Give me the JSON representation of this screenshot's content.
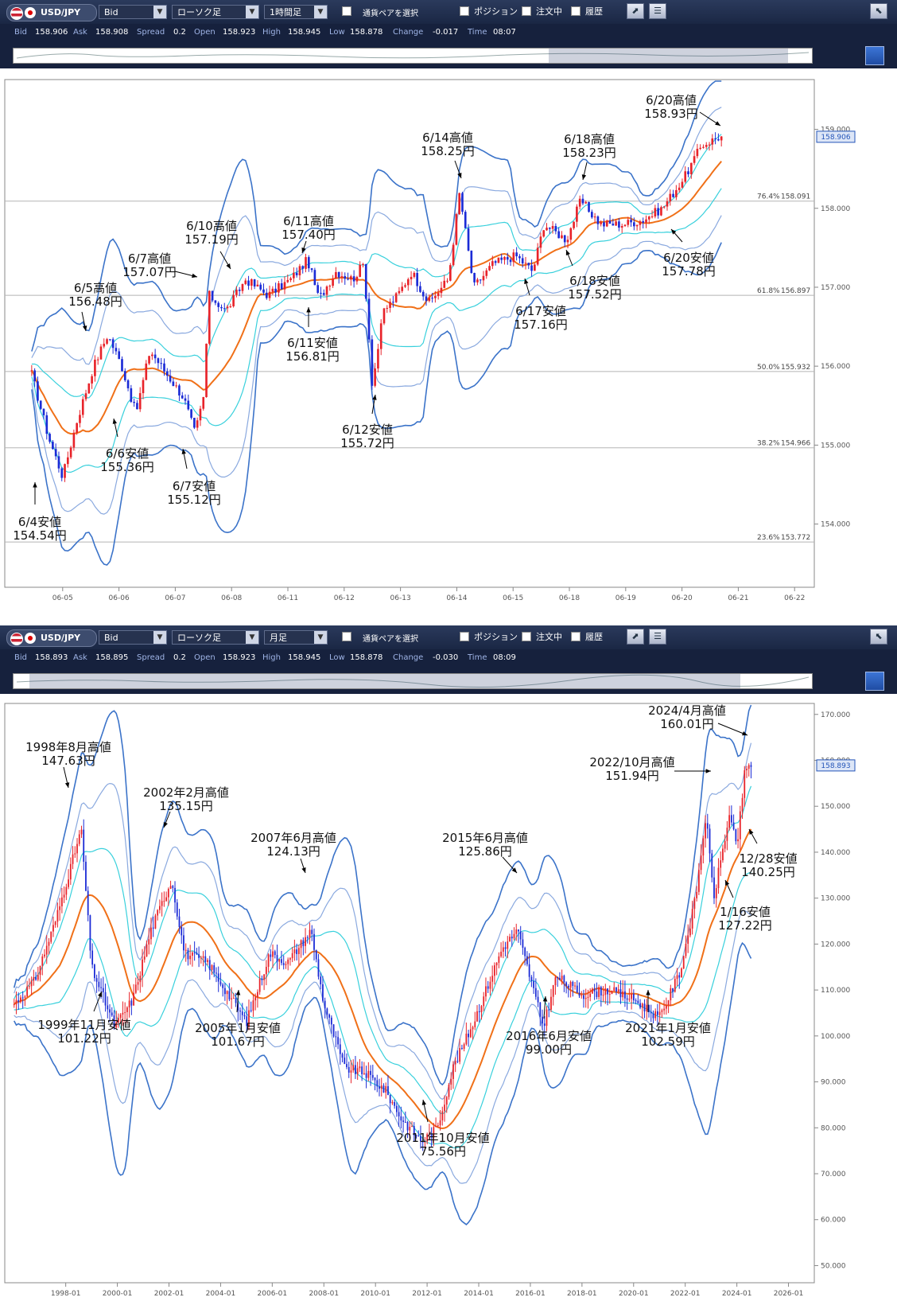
{
  "panels": [
    {
      "toolbar": {
        "pair": "USD/JPY",
        "price_type": "Bid",
        "chart_type": "ローソク足",
        "timeframe": "1時間足",
        "pair_select_label": "通貨ペアを選択",
        "position_label": "ポジション",
        "order_label": "注文中",
        "history_label": "履歴"
      },
      "info": {
        "bid_label": "Bid",
        "bid": "158.906",
        "ask_label": "Ask",
        "ask": "158.908",
        "spread_label": "Spread",
        "spread": "0.2",
        "open_label": "Open",
        "open": "158.923",
        "high_label": "High",
        "high": "158.945",
        "low_label": "Low",
        "low": "158.878",
        "change_label": "Change",
        "change": "-0.017",
        "time_label": "Time",
        "time": "08:07"
      },
      "navigator": {
        "window_start": 0.67,
        "window_end": 0.97
      }
    },
    {
      "toolbar": {
        "pair": "USD/JPY",
        "price_type": "Bid",
        "chart_type": "ローソク足",
        "timeframe": "月足",
        "pair_select_label": "通貨ペアを選択",
        "position_label": "ポジション",
        "order_label": "注文中",
        "history_label": "履歴"
      },
      "info": {
        "bid_label": "Bid",
        "bid": "158.893",
        "ask_label": "Ask",
        "ask": "158.895",
        "spread_label": "Spread",
        "spread": "0.2",
        "open_label": "Open",
        "open": "158.923",
        "high_label": "High",
        "high": "158.945",
        "low_label": "Low",
        "low": "158.878",
        "change_label": "Change",
        "change": "-0.030",
        "time_label": "Time",
        "time": "08:09"
      },
      "navigator": {
        "window_start": 0.02,
        "window_end": 0.91
      }
    }
  ],
  "colors": {
    "up_candle": "#e8232a",
    "down_candle": "#1b2bd6",
    "outer_band": "#3b73c9",
    "mid_band": "#8aa9df",
    "inner_band": "#38d0dc",
    "moving_average": "#f07018",
    "fib_line": "#b5b5b5",
    "price_tag": "#2455b8"
  },
  "chart_data": [
    {
      "type": "candlestick",
      "title": "",
      "timeframe": "1時間足",
      "x_tick_labels": [
        "06-05",
        "06-06",
        "06-07",
        "06-08",
        "06-11",
        "06-12",
        "06-13",
        "06-14",
        "06-15",
        "06-18",
        "06-19",
        "06-20",
        "06-21",
        "06-22"
      ],
      "y_tick_labels": [
        "159.000",
        "158.000",
        "157.000",
        "156.000",
        "155.000",
        "154.000"
      ],
      "ylim": [
        153.3,
        159.55
      ],
      "current_price": "158.906",
      "fib_levels": [
        {
          "label": "76.4%",
          "value": "158.091"
        },
        {
          "label": "61.8%",
          "value": "156.897"
        },
        {
          "label": "50.0%",
          "value": "155.932"
        },
        {
          "label": "38.2%",
          "value": "154.966"
        },
        {
          "label": "23.6%",
          "value": "153.772"
        }
      ],
      "close_path": [
        {
          "x": 0.0,
          "y": 155.9
        },
        {
          "x": 0.3,
          "y": 155.1
        },
        {
          "x": 0.55,
          "y": 154.6
        },
        {
          "x": 0.8,
          "y": 155.3
        },
        {
          "x": 1.1,
          "y": 156.0
        },
        {
          "x": 1.35,
          "y": 156.4
        },
        {
          "x": 1.6,
          "y": 156.0
        },
        {
          "x": 1.85,
          "y": 155.4
        },
        {
          "x": 2.1,
          "y": 156.2
        },
        {
          "x": 2.4,
          "y": 155.9
        },
        {
          "x": 2.7,
          "y": 155.6
        },
        {
          "x": 2.9,
          "y": 155.15
        },
        {
          "x": 3.05,
          "y": 155.6
        },
        {
          "x": 3.15,
          "y": 156.9
        },
        {
          "x": 3.45,
          "y": 156.7
        },
        {
          "x": 3.8,
          "y": 157.1
        },
        {
          "x": 4.2,
          "y": 156.9
        },
        {
          "x": 4.6,
          "y": 157.1
        },
        {
          "x": 4.9,
          "y": 157.35
        },
        {
          "x": 5.1,
          "y": 156.85
        },
        {
          "x": 5.4,
          "y": 157.2
        },
        {
          "x": 5.7,
          "y": 157.1
        },
        {
          "x": 5.9,
          "y": 157.3
        },
        {
          "x": 6.05,
          "y": 155.75
        },
        {
          "x": 6.25,
          "y": 156.7
        },
        {
          "x": 6.5,
          "y": 156.9
        },
        {
          "x": 6.75,
          "y": 157.2
        },
        {
          "x": 7.05,
          "y": 156.8
        },
        {
          "x": 7.4,
          "y": 157.1
        },
        {
          "x": 7.6,
          "y": 158.2
        },
        {
          "x": 7.85,
          "y": 157.0
        },
        {
          "x": 8.2,
          "y": 157.3
        },
        {
          "x": 8.6,
          "y": 157.4
        },
        {
          "x": 8.9,
          "y": 157.2
        },
        {
          "x": 9.1,
          "y": 157.8
        },
        {
          "x": 9.5,
          "y": 157.6
        },
        {
          "x": 9.75,
          "y": 158.1
        },
        {
          "x": 10.1,
          "y": 157.8
        },
        {
          "x": 10.5,
          "y": 157.8
        },
        {
          "x": 10.85,
          "y": 157.85
        },
        {
          "x": 11.2,
          "y": 158.0
        },
        {
          "x": 11.6,
          "y": 158.4
        },
        {
          "x": 11.9,
          "y": 158.8
        },
        {
          "x": 12.2,
          "y": 158.9
        }
      ],
      "annotations": [
        {
          "label": "6/4安値",
          "price": "154.54円"
        },
        {
          "label": "6/5高値",
          "price": "156.48円"
        },
        {
          "label": "6/6安値",
          "price": "155.36円"
        },
        {
          "label": "6/7高値",
          "price": "157.07円"
        },
        {
          "label": "6/7安値",
          "price": "155.12円"
        },
        {
          "label": "6/10高値",
          "price": "157.19円"
        },
        {
          "label": "6/11高値",
          "price": "157.40円"
        },
        {
          "label": "6/11安値",
          "price": "156.81円"
        },
        {
          "label": "6/12安値",
          "price": "155.72円"
        },
        {
          "label": "6/14高値",
          "price": "158.25円"
        },
        {
          "label": "6/17安値",
          "price": "157.16円"
        },
        {
          "label": "6/18高値",
          "price": "158.23円"
        },
        {
          "label": "6/18安値",
          "price": "157.52円"
        },
        {
          "label": "6/20高値",
          "price": "158.93円"
        },
        {
          "label": "6/20安値",
          "price": "157.78円"
        }
      ]
    },
    {
      "type": "candlestick",
      "title": "",
      "timeframe": "月足",
      "x_tick_labels": [
        "1998-01",
        "2000-01",
        "2002-01",
        "2004-01",
        "2006-01",
        "2008-01",
        "2010-01",
        "2012-01",
        "2014-01",
        "2016-01",
        "2018-01",
        "2020-01",
        "2022-01",
        "2024-01",
        "2026-01"
      ],
      "y_tick_labels": [
        "170.000",
        "160.000",
        "150.000",
        "140.000",
        "130.000",
        "120.000",
        "110.000",
        "100.000",
        "90.000",
        "80.000",
        "70.000",
        "60.000",
        "50.000"
      ],
      "ylim": [
        48,
        171
      ],
      "current_price": "158.893",
      "close_path": [
        {
          "x": 1996.0,
          "y": 107
        },
        {
          "x": 1996.8,
          "y": 112
        },
        {
          "x": 1997.6,
          "y": 125
        },
        {
          "x": 1998.6,
          "y": 145
        },
        {
          "x": 1999.0,
          "y": 115
        },
        {
          "x": 1999.9,
          "y": 102
        },
        {
          "x": 2000.6,
          "y": 108
        },
        {
          "x": 2001.3,
          "y": 123
        },
        {
          "x": 2002.1,
          "y": 134
        },
        {
          "x": 2002.6,
          "y": 118
        },
        {
          "x": 2003.5,
          "y": 116
        },
        {
          "x": 2005.0,
          "y": 103
        },
        {
          "x": 2005.9,
          "y": 118
        },
        {
          "x": 2006.6,
          "y": 116
        },
        {
          "x": 2007.5,
          "y": 123
        },
        {
          "x": 2008.0,
          "y": 107
        },
        {
          "x": 2008.8,
          "y": 93
        },
        {
          "x": 2009.6,
          "y": 92
        },
        {
          "x": 2010.4,
          "y": 88
        },
        {
          "x": 2011.0,
          "y": 82
        },
        {
          "x": 2011.8,
          "y": 77
        },
        {
          "x": 2012.4,
          "y": 80
        },
        {
          "x": 2013.0,
          "y": 93
        },
        {
          "x": 2013.8,
          "y": 103
        },
        {
          "x": 2014.9,
          "y": 119
        },
        {
          "x": 2015.5,
          "y": 123
        },
        {
          "x": 2016.5,
          "y": 102
        },
        {
          "x": 2017.0,
          "y": 113
        },
        {
          "x": 2018.0,
          "y": 109
        },
        {
          "x": 2019.0,
          "y": 110
        },
        {
          "x": 2020.0,
          "y": 108
        },
        {
          "x": 2021.0,
          "y": 104
        },
        {
          "x": 2021.8,
          "y": 114
        },
        {
          "x": 2022.4,
          "y": 130
        },
        {
          "x": 2022.8,
          "y": 148
        },
        {
          "x": 2023.1,
          "y": 130
        },
        {
          "x": 2023.7,
          "y": 148
        },
        {
          "x": 2024.0,
          "y": 141
        },
        {
          "x": 2024.3,
          "y": 157
        },
        {
          "x": 2024.5,
          "y": 159
        }
      ],
      "annotations": [
        {
          "label": "1998年8月高値",
          "price": "147.63円"
        },
        {
          "label": "1999年11月安値",
          "price": "101.22円"
        },
        {
          "label": "2002年2月高値",
          "price": "135.15円"
        },
        {
          "label": "2005年1月安値",
          "price": "101.67円"
        },
        {
          "label": "2007年6月高値",
          "price": "124.13円"
        },
        {
          "label": "2011年10月安値",
          "price": "75.56円"
        },
        {
          "label": "2015年6月高値",
          "price": "125.86円"
        },
        {
          "label": "2016年6月安値",
          "price": "99.00円"
        },
        {
          "label": "2021年1月安値",
          "price": "102.59円"
        },
        {
          "label": "2022/10月高値",
          "price": "151.94円"
        },
        {
          "label": "2024/4月高値",
          "price": "160.01円"
        },
        {
          "label": "12/28安値",
          "price": "140.25円"
        },
        {
          "label": "1/16安値",
          "price": "127.22円"
        }
      ]
    }
  ]
}
